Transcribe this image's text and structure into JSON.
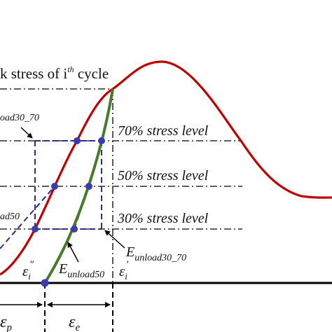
{
  "labels": {
    "peak_main": "k stress of i",
    "peak_sup": "th",
    "peak_tail": " cycle",
    "level70": "70% stress level",
    "level50": "50% stress level",
    "level30": "30% stress level",
    "unload30_70_left": "oad30_70",
    "unload50_left": "ad50",
    "e_unload30_70_main": "E",
    "e_unload30_70_sub": "unload30_70",
    "e_unload50_main": "E",
    "e_unload50_sub": "unload50",
    "eps_i_dd": "ε",
    "eps_i_dd_sub": "i",
    "eps_i_dd_sup": "″",
    "eps_i_d": "ε",
    "eps_i_d_sub": "i",
    "eps_i_d_sup": "′",
    "eps_p": "ε",
    "eps_p_sub": "p",
    "eps_e": "ε",
    "eps_e_sub": "e"
  },
  "colors": {
    "curve": "#c00000",
    "unload_line": "#4a7a2c",
    "marker": "#3b3bb0",
    "dashed": "#2b2b9a",
    "axis": "#000000"
  }
}
